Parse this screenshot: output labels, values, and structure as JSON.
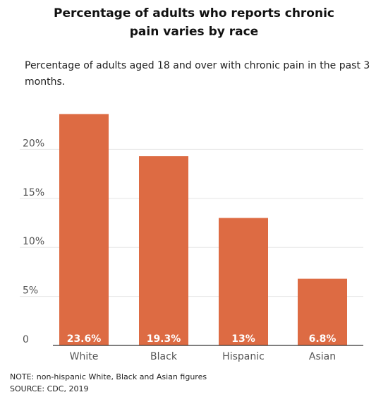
{
  "title_line1": "Percentage of adults who reports chronic",
  "title_line2": "pain varies by race",
  "subtitle": "Percentage of adults aged 18 and over with chronic pain in the past 3 months.",
  "note": "NOTE: non-hispanic White, Black and Asian figures",
  "source": "SOURCE: CDC, 2019",
  "colors": {
    "bar": "#dd6b43",
    "grid": "#e6e6e6",
    "axis": "#333333",
    "tick_text": "#555555",
    "bar_label": "#ffffff"
  },
  "chart_data": {
    "type": "bar",
    "categories": [
      "White",
      "Black",
      "Hispanic",
      "Asian"
    ],
    "values": [
      23.6,
      19.3,
      13,
      6.8
    ],
    "value_labels": [
      "23.6%",
      "19.3%",
      "13%",
      "6.8%"
    ],
    "y_ticks": [
      0,
      5,
      10,
      15,
      20
    ],
    "y_tick_labels": [
      "0",
      "5%",
      "10%",
      "15%",
      "20%"
    ],
    "ylim": [
      0,
      25
    ],
    "grid": true,
    "title": "Percentage of adults who reports chronic pain varies by race",
    "xlabel": "",
    "ylabel": ""
  }
}
